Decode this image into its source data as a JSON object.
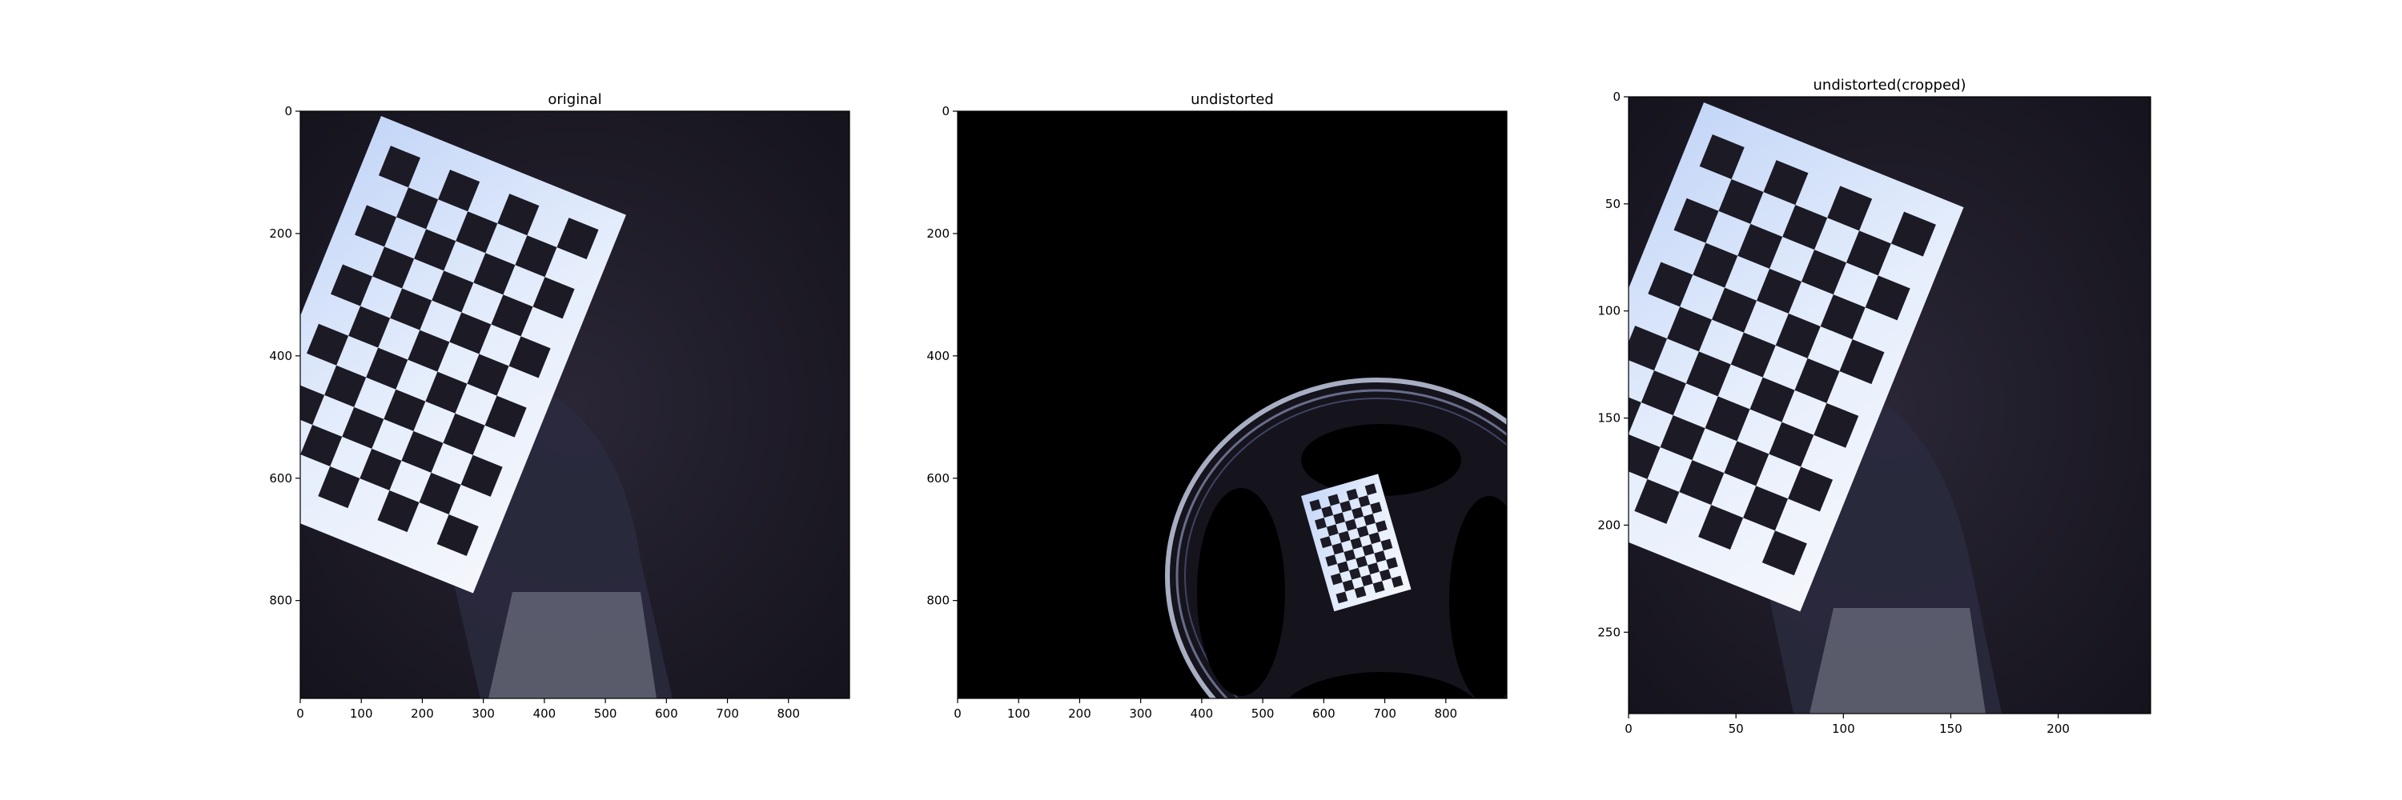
{
  "chart_data": [
    {
      "type": "image",
      "title": "original",
      "xlim": [
        0,
        900
      ],
      "ylim": [
        960,
        0
      ],
      "xticks": [
        0,
        100,
        200,
        300,
        400,
        500,
        600,
        700,
        800
      ],
      "yticks": [
        0,
        200,
        400,
        600,
        800
      ],
      "content": "photo of a person holding a checkerboard calibration target (fisheye distortion)"
    },
    {
      "type": "image",
      "title": "undistorted",
      "xlim": [
        0,
        900
      ],
      "ylim": [
        960,
        0
      ],
      "xticks": [
        0,
        100,
        200,
        300,
        400,
        500,
        600,
        700,
        800
      ],
      "yticks": [
        0,
        200,
        400,
        600,
        800
      ],
      "content": "undistorted image: mostly black with a warped circular region containing the checkerboard in the lower right"
    },
    {
      "type": "image",
      "title": "undistorted(cropped)",
      "xlim": [
        0,
        243
      ],
      "ylim": [
        288,
        0
      ],
      "xticks": [
        0,
        50,
        100,
        150,
        200
      ],
      "yticks": [
        0,
        50,
        100,
        150,
        200,
        250
      ],
      "content": "cropped undistorted image of the checkerboard target"
    }
  ],
  "colors": {
    "image_background": "#1c1a26",
    "board": "#d4e2f7",
    "board_squares": "#1b1a25",
    "black_region": "#000000"
  }
}
